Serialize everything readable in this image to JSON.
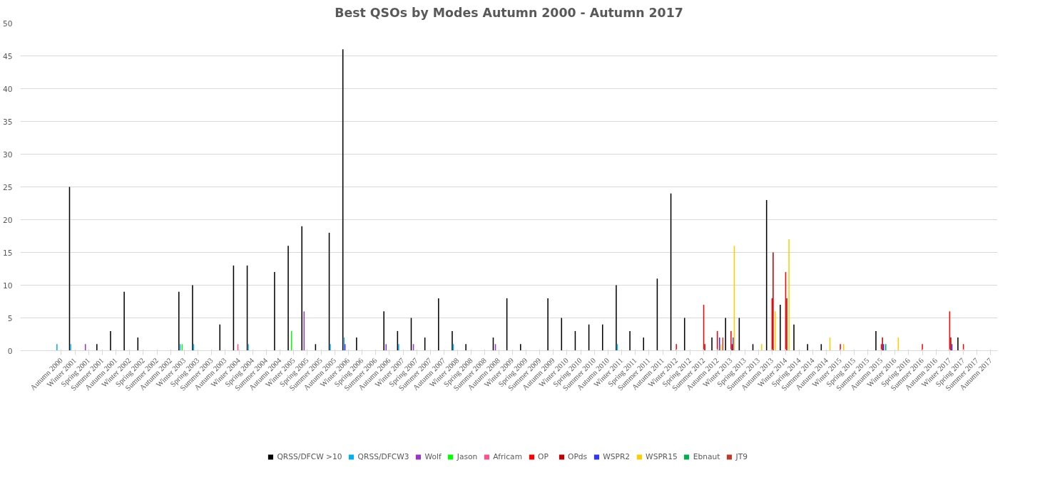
{
  "chart_data": {
    "type": "bar",
    "title": "Best QSOs by Modes Autumn 2000 - Autumn 2017",
    "categories": [
      "Autumn 2000",
      "Winter 2001",
      "Spring 2001",
      "Summer 2001",
      "Autumn 2001",
      "Winter 2002",
      "Spring 2002",
      "Summer 2002",
      "Autumn 2002",
      "Winter 2003",
      "Spring 2003",
      "Summer 2003",
      "Autumn 2003",
      "Winter 2004",
      "Spring 2004",
      "Summer 2004",
      "Autumn 2004",
      "Winter 2005",
      "Spring 2005",
      "Summer 2005",
      "Autumn 2005",
      "Winter 2006",
      "Spring 2006",
      "Summer 2006",
      "Autumn 2006",
      "Winter 2007",
      "Spring 2007",
      "Summer 2007",
      "Autumn 2007",
      "Winter 2008",
      "Spring 2008",
      "Summer 2008",
      "Autumn 2008",
      "Winter 2009",
      "Spring 2009",
      "Summer 2009",
      "Autumn 2009",
      "Winter 2010",
      "Spring 2010",
      "Summer 2010",
      "Autumn 2010",
      "Winter 2011",
      "Spring 2011",
      "Summer 2011",
      "Autumn 2011",
      "Winter 2012",
      "Spring 2012",
      "Summer 2012",
      "Autumn 2012",
      "Winter 2013",
      "Spring 2013",
      "Summer 2013",
      "Autumn 2013",
      "Winter 2014",
      "Spring 2014",
      "Summer 2014",
      "Autumn 2014",
      "Winter 2015",
      "Spring 2015",
      "Summer 2015",
      "Autumn 2015",
      "Winter 2016",
      "Spring 2016",
      "Summer 2016",
      "Autumn 2016",
      "Winter 2017",
      "Spring 2017",
      "Summer 2017",
      "Autumn 2017"
    ],
    "series": [
      {
        "name": "QRSS/DFCW >10",
        "color": "#000000",
        "values": [
          null,
          25,
          null,
          1,
          3,
          9,
          2,
          null,
          null,
          9,
          10,
          null,
          4,
          13,
          13,
          null,
          12,
          16,
          19,
          1,
          18,
          46,
          2,
          null,
          6,
          3,
          5,
          2,
          8,
          3,
          1,
          null,
          2,
          8,
          1,
          null,
          8,
          5,
          3,
          4,
          4,
          10,
          3,
          2,
          11,
          24,
          5,
          null,
          2,
          5,
          5,
          1,
          23,
          7,
          4,
          1,
          1,
          null,
          null,
          null,
          3,
          null,
          null,
          null,
          null,
          null,
          2,
          null,
          null
        ]
      },
      {
        "name": "QRSS/DFCW3",
        "color": "#00b0f0",
        "values": [
          1,
          1,
          null,
          null,
          null,
          null,
          null,
          null,
          null,
          1,
          1,
          null,
          null,
          null,
          1,
          null,
          null,
          null,
          null,
          null,
          1,
          2,
          null,
          null,
          null,
          1,
          null,
          null,
          null,
          1,
          null,
          null,
          null,
          null,
          null,
          null,
          null,
          null,
          null,
          null,
          null,
          1,
          null,
          null,
          null,
          null,
          null,
          null,
          null,
          null,
          null,
          null,
          null,
          null,
          null,
          null,
          null,
          null,
          null,
          null,
          null,
          null,
          null,
          null,
          null,
          null,
          null,
          null,
          null
        ]
      },
      {
        "name": "Wolf",
        "color": "#9933cc",
        "values": [
          null,
          null,
          1,
          null,
          null,
          null,
          null,
          null,
          null,
          null,
          null,
          null,
          null,
          null,
          null,
          null,
          null,
          null,
          6,
          null,
          null,
          1,
          null,
          null,
          1,
          null,
          1,
          null,
          null,
          null,
          null,
          null,
          1,
          null,
          null,
          null,
          null,
          null,
          null,
          null,
          null,
          null,
          null,
          null,
          null,
          null,
          null,
          null,
          null,
          null,
          null,
          null,
          null,
          null,
          null,
          null,
          null,
          null,
          null,
          null,
          null,
          null,
          null,
          null,
          null,
          null,
          null,
          null,
          null
        ]
      },
      {
        "name": "Jason",
        "color": "#00ff00",
        "values": [
          null,
          null,
          null,
          null,
          null,
          null,
          null,
          null,
          null,
          1,
          null,
          null,
          null,
          null,
          null,
          null,
          null,
          3,
          null,
          null,
          null,
          null,
          null,
          null,
          null,
          null,
          null,
          null,
          null,
          null,
          null,
          null,
          null,
          null,
          null,
          null,
          null,
          null,
          null,
          null,
          null,
          null,
          null,
          null,
          null,
          null,
          null,
          null,
          null,
          null,
          null,
          null,
          null,
          null,
          null,
          null,
          null,
          null,
          null,
          null,
          null,
          null,
          null,
          null,
          null,
          null,
          null,
          null,
          null
        ]
      },
      {
        "name": "Africam",
        "color": "#ff4f8b",
        "values": [
          null,
          null,
          null,
          null,
          null,
          null,
          null,
          null,
          null,
          null,
          null,
          null,
          null,
          1,
          null,
          null,
          null,
          null,
          null,
          null,
          null,
          null,
          null,
          null,
          null,
          null,
          null,
          null,
          null,
          null,
          null,
          null,
          null,
          null,
          null,
          null,
          null,
          null,
          null,
          null,
          null,
          null,
          null,
          null,
          null,
          null,
          null,
          null,
          null,
          null,
          null,
          null,
          null,
          null,
          null,
          null,
          null,
          null,
          null,
          null,
          null,
          null,
          null,
          null,
          null,
          null,
          null,
          null,
          null
        ]
      },
      {
        "name": "OP",
        "color": "#ff0000",
        "values": [
          null,
          null,
          null,
          null,
          null,
          null,
          null,
          null,
          null,
          null,
          null,
          null,
          null,
          null,
          null,
          null,
          null,
          null,
          null,
          null,
          null,
          null,
          null,
          null,
          null,
          null,
          null,
          null,
          null,
          null,
          null,
          null,
          null,
          null,
          null,
          null,
          null,
          null,
          null,
          null,
          null,
          null,
          null,
          null,
          null,
          1,
          null,
          7,
          3,
          3,
          null,
          null,
          8,
          12,
          null,
          null,
          null,
          1,
          null,
          null,
          1,
          null,
          null,
          1,
          null,
          6,
          1,
          null,
          null
        ]
      },
      {
        "name": "OPds",
        "color": "#c00000",
        "values": [
          null,
          null,
          null,
          null,
          null,
          null,
          null,
          null,
          null,
          null,
          null,
          null,
          null,
          null,
          null,
          null,
          null,
          null,
          null,
          null,
          null,
          null,
          null,
          null,
          null,
          null,
          null,
          null,
          null,
          null,
          null,
          null,
          null,
          null,
          null,
          null,
          null,
          null,
          null,
          null,
          null,
          null,
          null,
          null,
          null,
          null,
          null,
          1,
          null,
          1,
          null,
          null,
          15,
          8,
          null,
          null,
          null,
          null,
          null,
          null,
          2,
          null,
          null,
          null,
          null,
          2,
          null,
          null,
          null
        ]
      },
      {
        "name": "WSPR2",
        "color": "#3333ff",
        "values": [
          null,
          null,
          null,
          null,
          null,
          null,
          null,
          null,
          null,
          null,
          null,
          null,
          null,
          null,
          null,
          null,
          null,
          null,
          null,
          null,
          null,
          null,
          null,
          null,
          null,
          null,
          null,
          null,
          null,
          null,
          null,
          null,
          null,
          null,
          null,
          null,
          null,
          null,
          null,
          null,
          null,
          null,
          null,
          null,
          null,
          null,
          null,
          null,
          2,
          2,
          null,
          null,
          null,
          null,
          null,
          null,
          null,
          null,
          null,
          null,
          1,
          null,
          null,
          null,
          null,
          1,
          null,
          null,
          null
        ]
      },
      {
        "name": "WSPR15",
        "color": "#ffcc00",
        "values": [
          null,
          null,
          null,
          null,
          null,
          null,
          null,
          null,
          null,
          null,
          null,
          null,
          null,
          null,
          null,
          null,
          null,
          null,
          null,
          null,
          null,
          null,
          null,
          null,
          null,
          null,
          null,
          null,
          null,
          null,
          null,
          null,
          null,
          null,
          null,
          null,
          null,
          null,
          null,
          null,
          null,
          null,
          null,
          null,
          null,
          null,
          null,
          null,
          1,
          16,
          null,
          1,
          6,
          17,
          null,
          null,
          2,
          1,
          null,
          null,
          null,
          2,
          null,
          null,
          null,
          null,
          null,
          null,
          null
        ]
      },
      {
        "name": "Ebnaut",
        "color": "#00b050",
        "values": [
          null,
          null,
          null,
          null,
          null,
          null,
          null,
          null,
          null,
          null,
          null,
          null,
          null,
          null,
          null,
          null,
          null,
          null,
          null,
          null,
          null,
          null,
          null,
          null,
          null,
          null,
          null,
          null,
          null,
          null,
          null,
          null,
          null,
          null,
          null,
          null,
          null,
          null,
          null,
          null,
          null,
          null,
          null,
          null,
          null,
          null,
          null,
          null,
          null,
          null,
          null,
          null,
          null,
          null,
          null,
          null,
          null,
          null,
          null,
          null,
          1,
          null,
          null,
          null,
          null,
          null,
          null,
          null,
          null
        ]
      },
      {
        "name": "JT9",
        "color": "#c0392b",
        "values": [
          null,
          null,
          null,
          null,
          null,
          null,
          null,
          null,
          null,
          null,
          null,
          null,
          null,
          null,
          null,
          null,
          null,
          null,
          null,
          null,
          null,
          null,
          null,
          null,
          null,
          null,
          null,
          null,
          null,
          null,
          null,
          null,
          null,
          null,
          null,
          null,
          null,
          null,
          null,
          null,
          null,
          null,
          null,
          null,
          null,
          null,
          null,
          null,
          2,
          null,
          null,
          null,
          null,
          null,
          null,
          null,
          null,
          null,
          null,
          null,
          null,
          null,
          null,
          null,
          null,
          null,
          null,
          null,
          null
        ]
      }
    ],
    "ylim": [
      0,
      50
    ],
    "yticks": [
      0,
      5,
      10,
      15,
      20,
      25,
      30,
      35,
      40,
      45,
      50
    ],
    "grid": "y",
    "legend": "bottom"
  }
}
